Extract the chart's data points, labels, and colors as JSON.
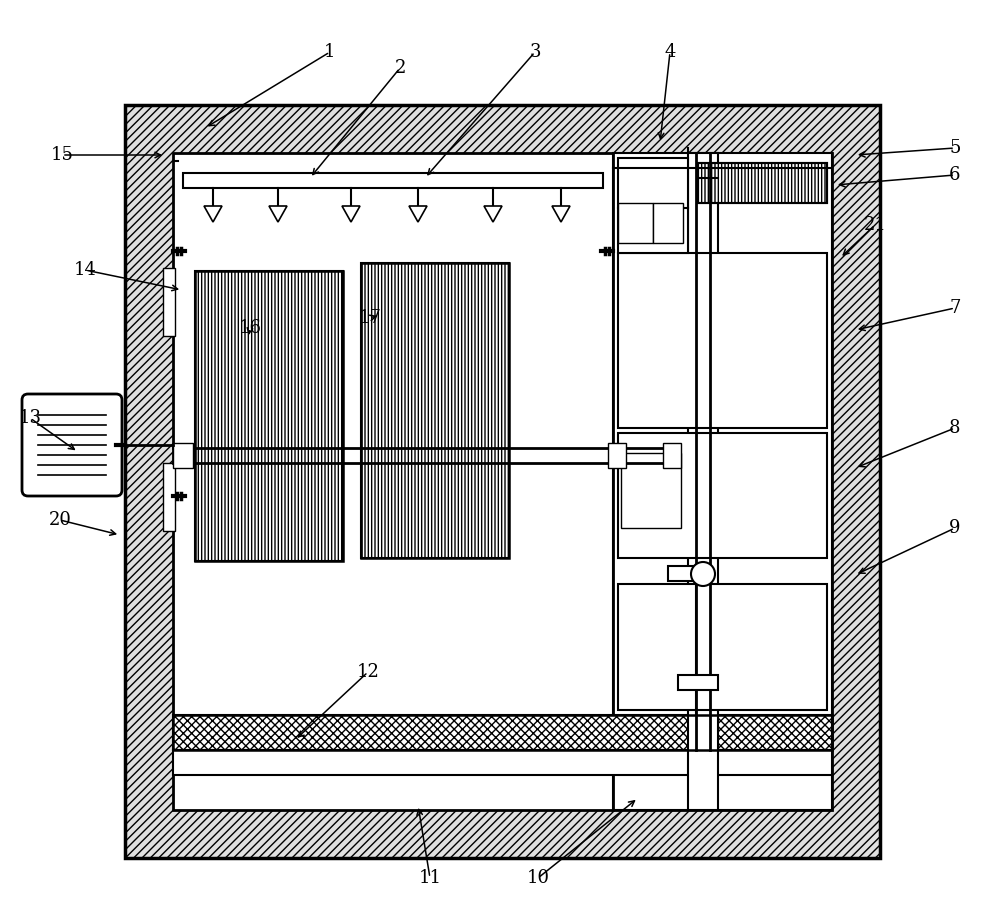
{
  "fig_width": 10.0,
  "fig_height": 9.21,
  "bg_color": "#ffffff",
  "lc": "#000000",
  "labels": [
    [
      "1",
      330,
      52,
      205,
      128
    ],
    [
      "2",
      400,
      68,
      310,
      178
    ],
    [
      "3",
      535,
      52,
      425,
      178
    ],
    [
      "4",
      670,
      52,
      660,
      143
    ],
    [
      "5",
      955,
      148,
      855,
      155
    ],
    [
      "6",
      955,
      175,
      835,
      185
    ],
    [
      "21",
      875,
      225,
      840,
      258
    ],
    [
      "7",
      955,
      308,
      855,
      330
    ],
    [
      "8",
      955,
      428,
      855,
      468
    ],
    [
      "9",
      955,
      528,
      855,
      575
    ],
    [
      "10",
      538,
      878,
      638,
      798
    ],
    [
      "11",
      430,
      878,
      418,
      805
    ],
    [
      "12",
      368,
      672,
      295,
      740
    ],
    [
      "13",
      30,
      418,
      78,
      452
    ],
    [
      "14",
      85,
      270,
      182,
      290
    ],
    [
      "15",
      62,
      155,
      165,
      155
    ],
    [
      "16",
      250,
      328,
      248,
      338
    ],
    [
      "17",
      370,
      318,
      380,
      315
    ],
    [
      "20",
      60,
      520,
      120,
      535
    ]
  ]
}
